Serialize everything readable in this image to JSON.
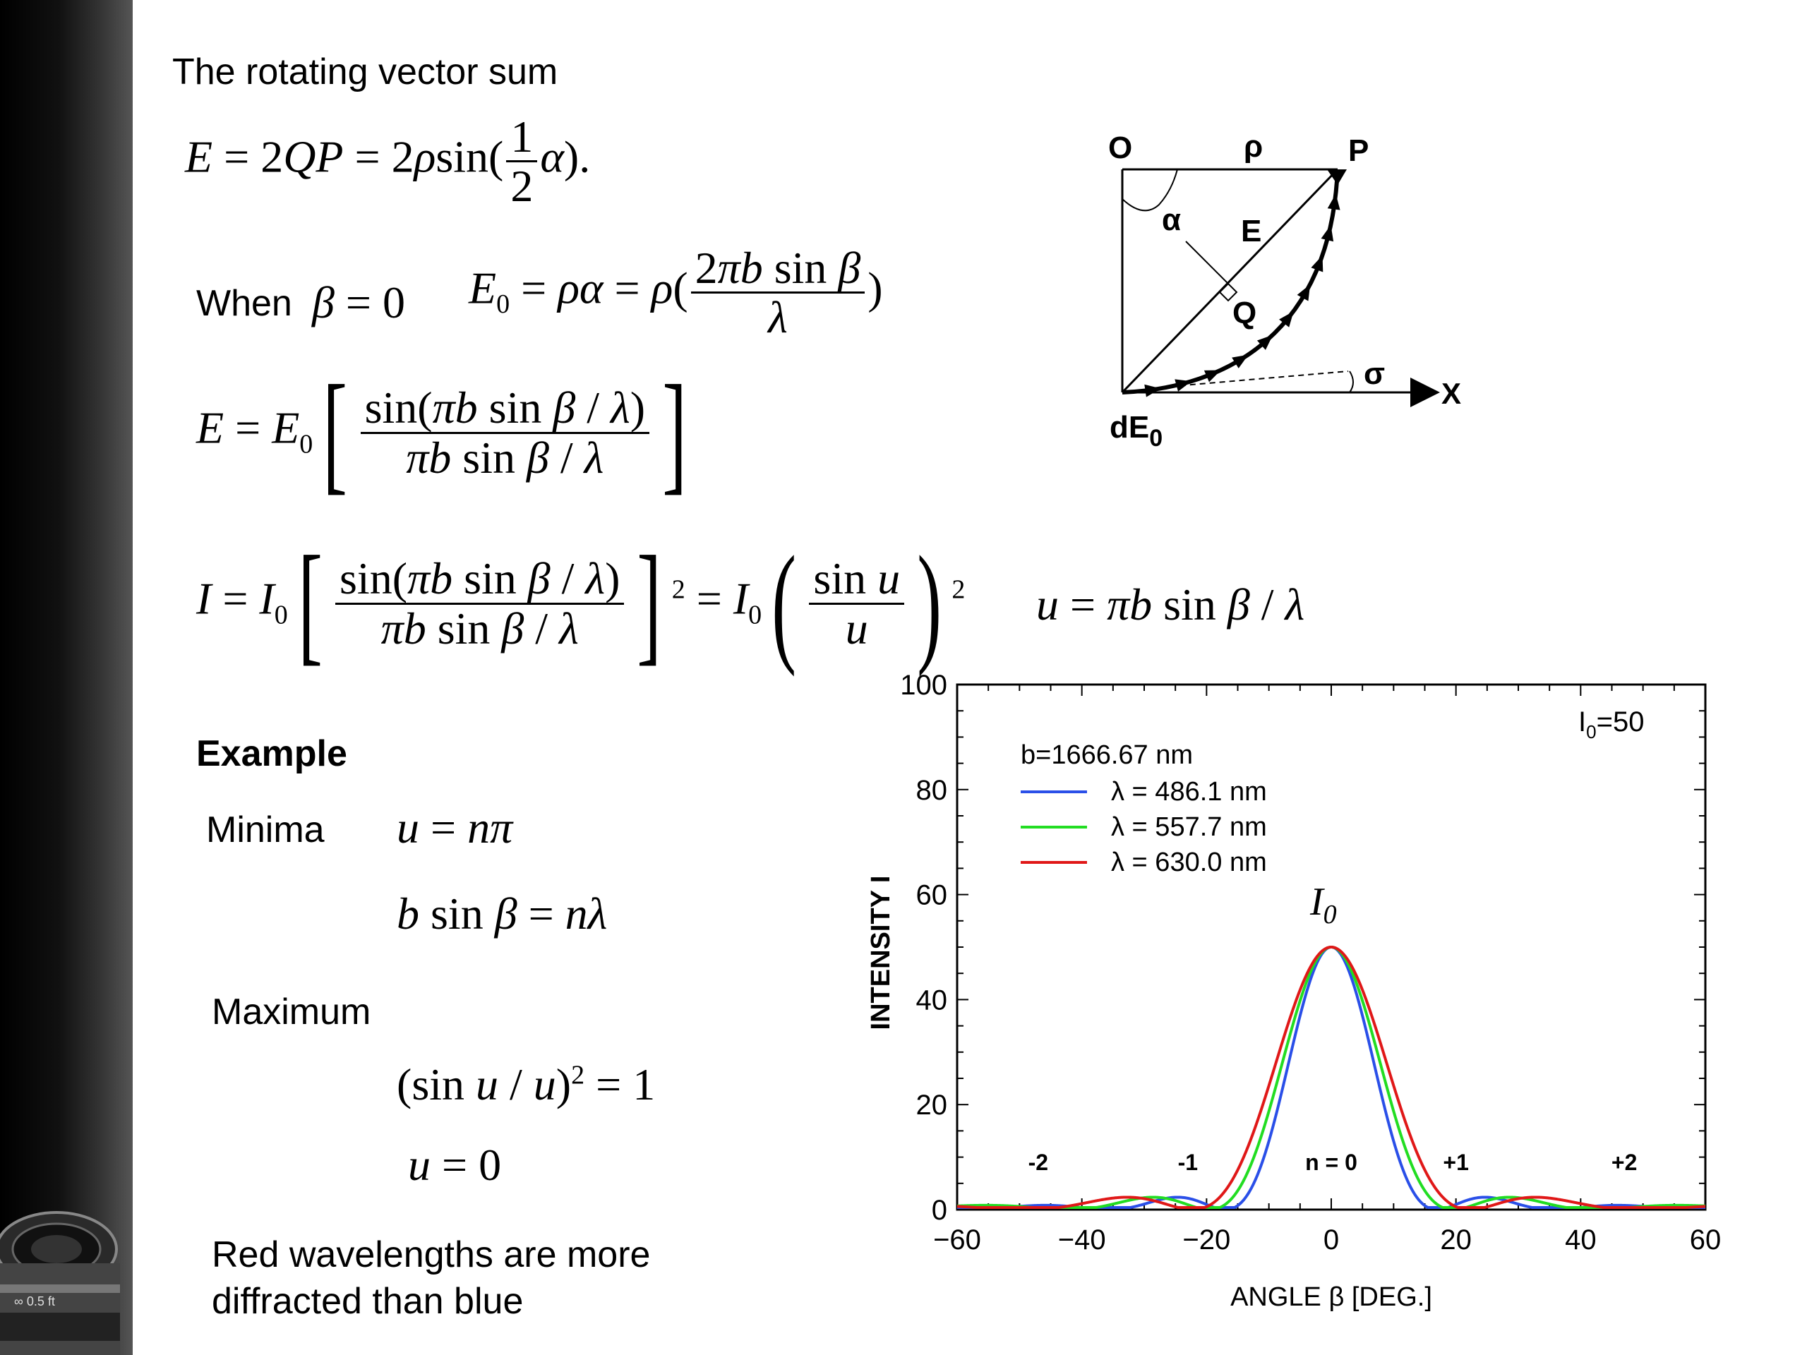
{
  "slide": {
    "heading": "The rotating vector sum",
    "when_label": "When",
    "example_label": "Example",
    "minima_label": "Minima",
    "maximum_label": "Maximum",
    "conclusion_line1": "Red wavelengths are more",
    "conclusion_line2": "diffracted than blue"
  },
  "diagram": {
    "label_o": "O",
    "label_rho": "ρ",
    "label_p": "P",
    "label_alpha": "α",
    "label_e": "E",
    "label_q": "Q",
    "label_sigma": "σ",
    "label_x": "X",
    "label_de0": "dE",
    "label_de0_sub": "0"
  },
  "chart_data": {
    "type": "line",
    "xlabel": "ANGLE β  [DEG.]",
    "ylabel": "INTENSITY I",
    "xlim": [
      -60,
      60
    ],
    "ylim": [
      0,
      100
    ],
    "xticks": [
      "−60",
      "−40",
      "−20",
      "0",
      "20",
      "40",
      "60"
    ],
    "yticks": [
      "0",
      "20",
      "40",
      "60",
      "80",
      "100"
    ],
    "i0_value_label": "I",
    "i0_value_sub": "0",
    "i0_value_text": "=50",
    "i0_peak_label": "I",
    "i0_peak_sub": "0",
    "b_label": "b=1666.67  nm",
    "I0": 50,
    "b_nm": 1666.67,
    "order_labels": [
      {
        "text": "-2",
        "x": -47
      },
      {
        "text": "-1",
        "x": -23
      },
      {
        "text": "n = 0",
        "x": 0
      },
      {
        "text": "+1",
        "x": 20
      },
      {
        "text": "+2",
        "x": 47
      }
    ],
    "series": [
      {
        "name": "λ = 486.1 nm",
        "wavelength_nm": 486.1,
        "color": "#2a4fe8"
      },
      {
        "name": "λ = 557.7 nm",
        "wavelength_nm": 557.7,
        "color": "#22dd22"
      },
      {
        "name": "λ = 630.0 nm",
        "wavelength_nm": 630.0,
        "color": "#e01818"
      }
    ],
    "grid": false,
    "legend_position": "top-left"
  }
}
